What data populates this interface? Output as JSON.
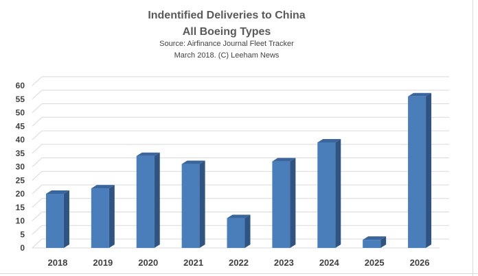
{
  "chart_data": {
    "type": "bar",
    "title": "Indentified Deliveries to China",
    "subtitle": "All Boeing Types",
    "annotations": [
      "Source: Airfinance Journal Fleet Tracker",
      "March 2018. (C) Leeham News"
    ],
    "categories": [
      "2018",
      "2019",
      "2020",
      "2021",
      "2022",
      "2023",
      "2024",
      "2025",
      "2026"
    ],
    "values": [
      20,
      22,
      34,
      31,
      11,
      32,
      39,
      3,
      56
    ],
    "xlabel": "",
    "ylabel": "",
    "ylim": [
      0,
      60
    ],
    "yticks": [
      "0",
      "5",
      "10",
      "15",
      "20",
      "25",
      "30",
      "35",
      "40",
      "45",
      "50",
      "55",
      "60"
    ],
    "grid": true,
    "legend": "none",
    "colors": {
      "bar_front": "#4a7ebb",
      "bar_side": "#2f5482",
      "bar_top": "#3a659d",
      "grid": "#d9d9d9",
      "text": "#404040",
      "title": "#595959"
    }
  }
}
